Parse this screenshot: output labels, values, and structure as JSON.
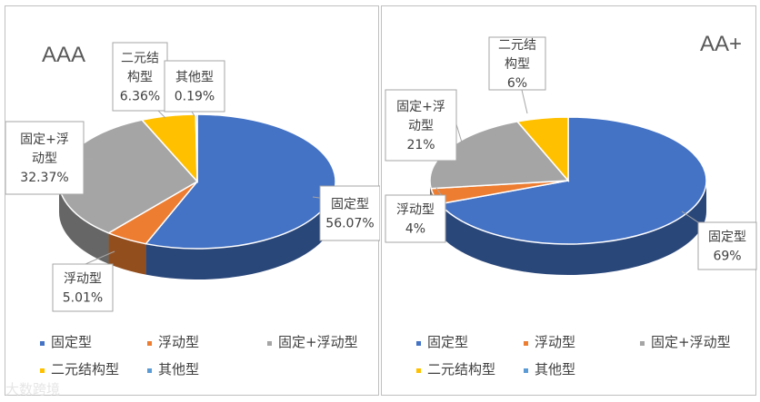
{
  "colors": {
    "fixed": "#4472C4",
    "floating": "#ED7D31",
    "fixed_plus_floating": "#A5A5A5",
    "binary": "#FFC000",
    "other": "#5B9BD5"
  },
  "legend": {
    "items": [
      {
        "key": "fixed",
        "label": "固定型"
      },
      {
        "key": "floating",
        "label": "浮动型"
      },
      {
        "key": "fixed_plus_floating",
        "label": "固定+浮动型"
      },
      {
        "key": "binary",
        "label": "二元结构型"
      },
      {
        "key": "other",
        "label": "其他型"
      }
    ]
  },
  "watermark": "大数跨境",
  "chart_data": [
    {
      "type": "pie",
      "title": "AAA",
      "slices": [
        {
          "key": "fixed",
          "label_lines": [
            "固定型",
            "56.07%"
          ],
          "value": 56.07
        },
        {
          "key": "floating",
          "label_lines": [
            "浮动型",
            "5.01%"
          ],
          "value": 5.01
        },
        {
          "key": "fixed_plus_floating",
          "label_lines": [
            "固定+浮",
            "动型",
            "32.37%"
          ],
          "value": 32.37
        },
        {
          "key": "binary",
          "label_lines": [
            "二元结",
            "构型",
            "6.36%"
          ],
          "value": 6.36
        },
        {
          "key": "other",
          "label_lines": [
            "其他型",
            "0.19%"
          ],
          "value": 0.19
        }
      ],
      "legend_position": "bottom"
    },
    {
      "type": "pie",
      "title": "AA+",
      "slices": [
        {
          "key": "fixed",
          "label_lines": [
            "固定型",
            "69%"
          ],
          "value": 69
        },
        {
          "key": "floating",
          "label_lines": [
            "浮动型",
            "4%"
          ],
          "value": 4
        },
        {
          "key": "fixed_plus_floating",
          "label_lines": [
            "固定+浮",
            "动型",
            "21%"
          ],
          "value": 21
        },
        {
          "key": "binary",
          "label_lines": [
            "二元结",
            "构型",
            "6%"
          ],
          "value": 6
        },
        {
          "key": "other",
          "label_lines": [],
          "value": 0
        }
      ],
      "legend_position": "bottom"
    }
  ]
}
